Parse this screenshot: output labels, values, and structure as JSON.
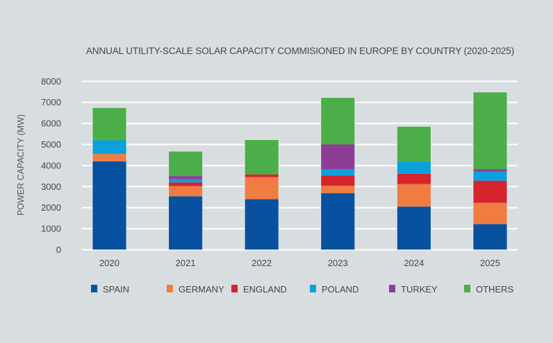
{
  "chart_data": {
    "type": "bar",
    "stacked": true,
    "title": "ANNUAL UTILITY-SCALE SOLAR CAPACITY COMMISIONED IN EUROPE BY COUNTRY (2020-2025)",
    "xlabel": "",
    "ylabel": "POWER CAPACITY (MW)",
    "ylim": [
      0,
      8000
    ],
    "yticks": [
      0,
      1000,
      2000,
      3000,
      4000,
      5000,
      6000,
      7000,
      8000
    ],
    "grid": true,
    "legend_position": "bottom",
    "categories": [
      "2020",
      "2021",
      "2022",
      "2023",
      "2024",
      "2025"
    ],
    "series": [
      {
        "name": "SPAIN",
        "color": "#0751a0",
        "values": [
          4200,
          2540,
          2400,
          2690,
          2050,
          1220
        ]
      },
      {
        "name": "GERMANY",
        "color": "#f07c42",
        "values": [
          350,
          480,
          1050,
          350,
          1070,
          1010
        ]
      },
      {
        "name": "ENGLAND",
        "color": "#d5242c",
        "values": [
          0,
          180,
          130,
          485,
          490,
          1050
        ]
      },
      {
        "name": "POLAND",
        "color": "#0ca0dc",
        "values": [
          650,
          150,
          0,
          295,
          575,
          430
        ]
      },
      {
        "name": "TURKEY",
        "color": "#8e3d96",
        "values": [
          0,
          150,
          0,
          1180,
          0,
          120
        ]
      },
      {
        "name": "OTHERS",
        "color": "#4cae48",
        "values": [
          1550,
          1180,
          1650,
          2230,
          1675,
          3660
        ]
      }
    ]
  },
  "colors": {
    "background": "#d8dde0",
    "gridline": "#ffffff",
    "text": "#454545"
  }
}
